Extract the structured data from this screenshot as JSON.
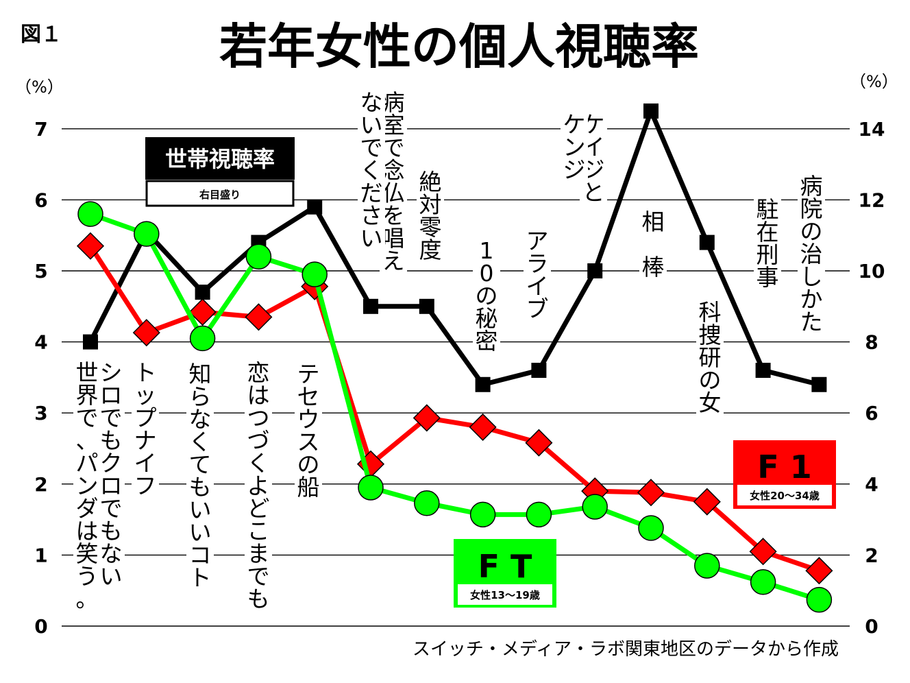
{
  "figure_label": "図１",
  "title": "若年女性の個人視聴率",
  "left_unit": "（%）",
  "right_unit": "（%）",
  "source_note": "スイッチ・メディア・ラボ関東地区のデータから作成",
  "legend": {
    "household": {
      "title": "世帯視聴率",
      "sub": "右目盛り",
      "color": "#000000"
    },
    "f1": {
      "title": "F 1",
      "sub": "女性20～34歳",
      "color": "#ff0000"
    },
    "ft": {
      "title": "F T",
      "sub": "女性13～19歳",
      "color": "#00ff00"
    }
  },
  "chart_data": {
    "type": "line",
    "title": "若年女性の個人視聴率",
    "categories": [
      "シロでもクロでもない世界で、パンダは笑う。",
      "トップナイフ",
      "知らなくてもいいコト",
      "恋はつづくよどこまでも",
      "テセウスの船",
      "病室で念仏を唱えないでください",
      "絶対零度",
      "10の秘密",
      "アライブ",
      "ケイジとケンジ",
      "相棒",
      "科捜研の女",
      "駐在刑事",
      "病院の治しかた"
    ],
    "y_left": {
      "ylim": [
        0,
        7
      ],
      "ticks": [
        "0",
        "1",
        "2",
        "3",
        "4",
        "5",
        "6",
        "7"
      ]
    },
    "y_right": {
      "ylim": [
        0,
        14
      ],
      "ticks": [
        "0",
        "2",
        "4",
        "6",
        "8",
        "10",
        "12",
        "14"
      ]
    },
    "grid": true,
    "series": [
      {
        "name": "世帯視聴率",
        "axis": "right",
        "color": "#000000",
        "marker": "square",
        "values": [
          8.0,
          11.1,
          9.4,
          10.8,
          11.8,
          9.0,
          9.0,
          6.8,
          7.2,
          10.0,
          14.5,
          10.8,
          7.2,
          6.8
        ]
      },
      {
        "name": "F 1",
        "axis": "left",
        "color": "#ff0000",
        "marker": "diamond",
        "values": [
          5.35,
          4.13,
          4.42,
          4.35,
          4.78,
          2.28,
          2.93,
          2.8,
          2.58,
          1.9,
          1.88,
          1.75,
          1.05,
          0.78
        ]
      },
      {
        "name": "F T",
        "axis": "left",
        "color": "#00ff00",
        "marker": "circle",
        "values": [
          5.8,
          5.52,
          4.05,
          5.2,
          4.95,
          1.95,
          1.73,
          1.57,
          1.57,
          1.68,
          1.38,
          0.85,
          0.62,
          0.37
        ]
      }
    ]
  }
}
